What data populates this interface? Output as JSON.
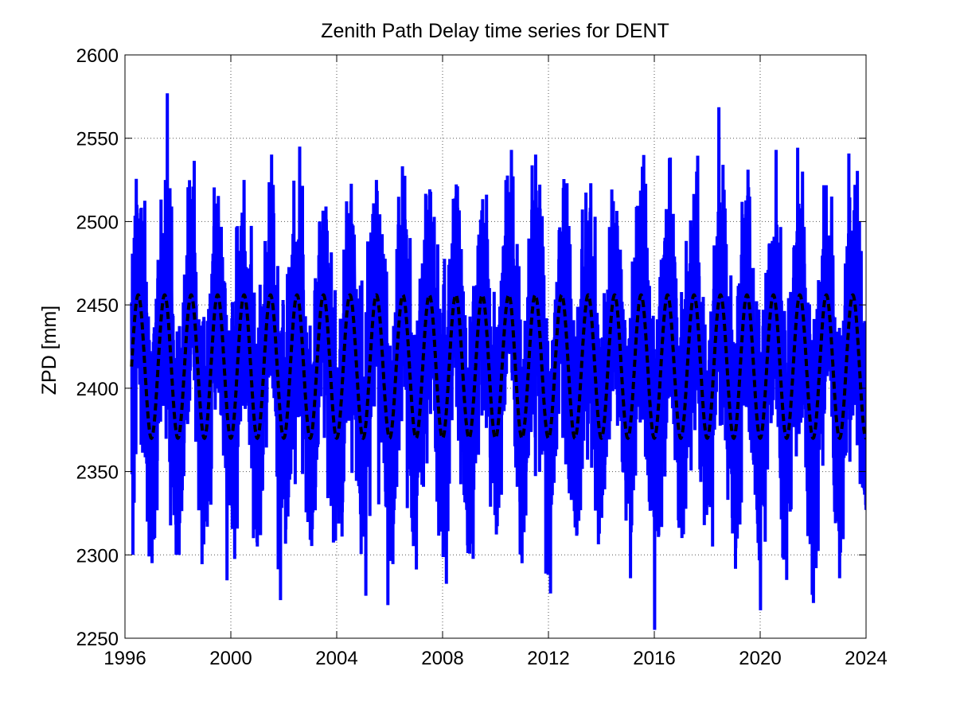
{
  "chart_data": {
    "type": "line",
    "title": "Zenith Path Delay time series for DENT",
    "xlabel": "",
    "ylabel": "ZPD [mm]",
    "xlim": [
      1996,
      2024
    ],
    "ylim": [
      2250,
      2600
    ],
    "x_ticks": [
      1996,
      2000,
      2004,
      2008,
      2012,
      2016,
      2020,
      2024
    ],
    "y_ticks": [
      2250,
      2300,
      2350,
      2400,
      2450,
      2500,
      2550,
      2600
    ],
    "grid": true,
    "colors": {
      "observed": "#0000ff",
      "model": "#000000"
    },
    "series": [
      {
        "style": "solid",
        "mean": 2413,
        "seasonal_amplitude": 43,
        "peak_fraction_of_year": 0.5,
        "x": [
          1996.3,
          1996.5,
          1997.0,
          1997.6,
          1997.7,
          1998.1,
          1999.0,
          2000.5,
          2001.0,
          2001.6,
          2002.6,
          2003.0,
          2004.2,
          2005.5,
          2006.0,
          2007.0,
          2008.1,
          2009.0,
          2010.6,
          2011.0,
          2012.7,
          2013.6,
          2015.1,
          2015.6,
          2017.6,
          2018.2,
          2019.6,
          2020.6,
          2021.0,
          2021.6,
          2022.7,
          2023.0,
          2023.6,
          2024.0
        ],
        "y": [
          2300,
          2493,
          2312,
          2577,
          2520,
          2334,
          2320,
          2525,
          2305,
          2522,
          2545,
          2309,
          2311,
          2525,
          2303,
          2309,
          2310,
          2305,
          2543,
          2295,
          2523,
          2523,
          2286,
          2540,
          2530,
          2305,
          2515,
          2543,
          2285,
          2530,
          2515,
          2286,
          2520,
          2327
        ]
      },
      {
        "style": "dashed",
        "mean": 2413,
        "amplitude": 43,
        "min": 2370,
        "max": 2456,
        "cycles_per_year": 1,
        "peak_fraction_of_year": 0.5
      }
    ]
  }
}
